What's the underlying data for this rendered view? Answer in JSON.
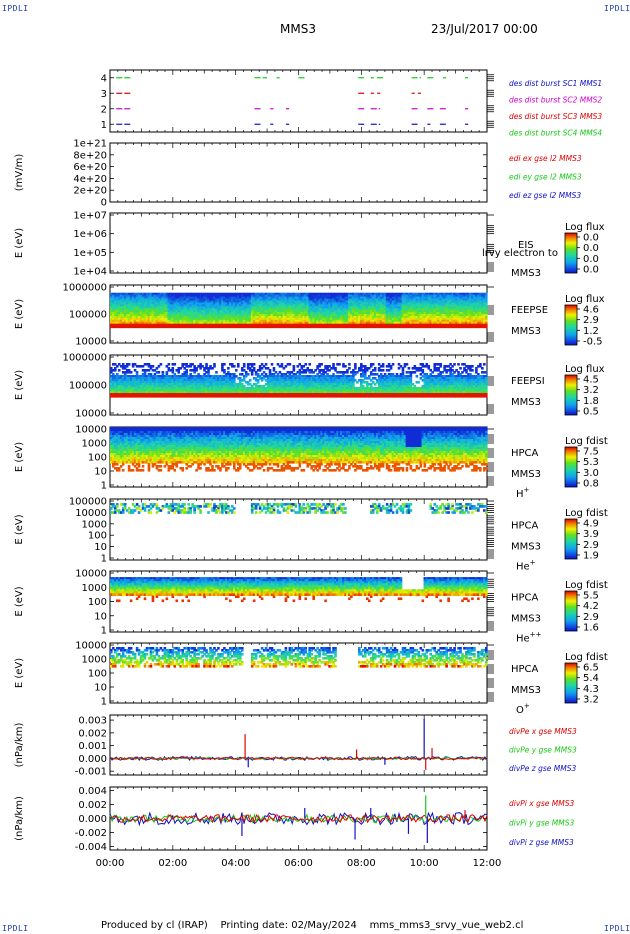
{
  "header": {
    "corner_label": "IPDLI",
    "spacecraft": "MMS3",
    "date": "23/Jul/2017 00:00"
  },
  "footer": {
    "producer": "Produced by cl (IRAP)",
    "printing_date": "Printing date: 02/May/2024",
    "script": "mms_mms3_srvy_vue_web2.cl"
  },
  "colors": {
    "red": "#e00000",
    "green": "#18c818",
    "blue": "#1010c8",
    "magenta": "#d000d0",
    "navy": "#1a3bb0"
  },
  "chart_data": [
    {
      "type": "timeline",
      "id": "burst",
      "y_ticks": [
        "1",
        "2",
        "3",
        "4"
      ],
      "ylim": [
        0.5,
        4.5
      ],
      "legend": [
        {
          "text": "des dist burst SC1 MMS1",
          "color": "#1010c8"
        },
        {
          "text": "des dist burst SC2 MMS2",
          "color": "#d000d0"
        },
        {
          "text": "des dist burst SC3 MMS3",
          "color": "#e00000"
        },
        {
          "text": "des dist burst SC4 MMS4",
          "color": "#18c818"
        }
      ],
      "series": [
        {
          "level": 1,
          "color": "#1010c8",
          "intervals": [
            [
              0.2,
              0.7
            ],
            [
              4.6,
              4.8
            ],
            [
              5.1,
              5.2
            ],
            [
              5.6,
              5.7
            ],
            [
              7.9,
              8.1
            ],
            [
              8.3,
              8.6
            ],
            [
              9.6,
              9.8
            ],
            [
              10.1,
              10.2
            ],
            [
              10.5,
              10.7
            ],
            [
              11.3,
              11.4
            ]
          ]
        },
        {
          "level": 2,
          "color": "#d000d0",
          "intervals": [
            [
              0.2,
              0.7
            ],
            [
              4.6,
              4.8
            ],
            [
              5.1,
              5.2
            ],
            [
              5.6,
              5.7
            ],
            [
              7.9,
              8.1
            ],
            [
              8.3,
              8.6
            ],
            [
              9.6,
              9.8
            ],
            [
              10.1,
              10.3
            ],
            [
              10.5,
              10.7
            ],
            [
              11.3,
              11.4
            ]
          ]
        },
        {
          "level": 3,
          "color": "#e00000",
          "intervals": [
            [
              0.2,
              0.7
            ],
            [
              7.9,
              8.1
            ],
            [
              8.3,
              8.4
            ],
            [
              8.5,
              8.6
            ],
            [
              9.6,
              9.7
            ],
            [
              9.8,
              9.9
            ]
          ]
        },
        {
          "level": 4,
          "color": "#18c818",
          "intervals": [
            [
              0.2,
              0.7
            ],
            [
              4.6,
              5.0
            ],
            [
              5.3,
              5.4
            ],
            [
              6.0,
              6.2
            ],
            [
              7.9,
              8.1
            ],
            [
              8.3,
              8.4
            ],
            [
              8.5,
              8.7
            ],
            [
              9.6,
              9.9
            ],
            [
              10.1,
              10.3
            ],
            [
              10.6,
              10.7
            ],
            [
              11.3,
              11.4
            ]
          ]
        }
      ]
    },
    {
      "type": "line",
      "id": "edi",
      "ylabel": "(mV/m)",
      "y_ticks": [
        "0",
        "2e+20",
        "4e+20",
        "6e+20",
        "8e+20",
        "1e+21"
      ],
      "ylim": [
        0,
        1e+21
      ],
      "legend": [
        {
          "text": "edi ex gse l2 MMS3",
          "color": "#e00000"
        },
        {
          "text": "edi ey gse l2 MMS3",
          "color": "#18c818"
        },
        {
          "text": "edi ez gse l2 MMS3",
          "color": "#1010c8"
        }
      ],
      "value_all_times": 0
    },
    {
      "type": "heatmap",
      "id": "eis",
      "ylabel": "E (eV)",
      "y_ticks": [
        "1e+04",
        "1e+05",
        "1e+06",
        "1e+07"
      ],
      "scale": "log",
      "empty": true,
      "label_lines": [
        "EIS",
        "MMS3"
      ],
      "overlay_text": "lrvy electron to",
      "colorbar": {
        "title": "Log flux",
        "ticks": [
          "0.0",
          "0.0",
          "0.0",
          "0.0"
        ]
      }
    },
    {
      "type": "heatmap",
      "id": "feeps_e",
      "ylabel": "E (eV)",
      "y_ticks": [
        "10000",
        "100000",
        "1000000"
      ],
      "scale": "log",
      "label_lines": [
        "FEEPSE",
        "MMS3"
      ],
      "colorbar": {
        "title": "Log flux",
        "ticks": [
          "4.6",
          "2.9",
          "1.2",
          "-0.5"
        ]
      }
    },
    {
      "type": "heatmap",
      "id": "feeps_i",
      "ylabel": "E (eV)",
      "y_ticks": [
        "10000",
        "100000",
        "1000000"
      ],
      "scale": "log",
      "label_lines": [
        "FEEPSI",
        "MMS3"
      ],
      "colorbar": {
        "title": "Log flux",
        "ticks": [
          "4.5",
          "3.2",
          "1.8",
          "0.5"
        ]
      }
    },
    {
      "type": "heatmap",
      "id": "hpca_h",
      "ylabel": "E (eV)",
      "y_ticks": [
        "1",
        "10",
        "100",
        "1000",
        "10000"
      ],
      "scale": "log",
      "label_lines": [
        "HPCA",
        "MMS3"
      ],
      "species": "H",
      "species_charge": "+",
      "colorbar": {
        "title": "Log fdist",
        "ticks": [
          "7.5",
          "5.3",
          "3.0",
          "0.8"
        ]
      }
    },
    {
      "type": "heatmap",
      "id": "hpca_he1",
      "ylabel": "E (eV)",
      "y_ticks": [
        "1",
        "10",
        "100",
        "1000",
        "10000",
        "100000"
      ],
      "scale": "log",
      "label_lines": [
        "HPCA",
        "MMS3"
      ],
      "species": "He",
      "species_charge": "+",
      "colorbar": {
        "title": "Log fdist",
        "ticks": [
          "4.9",
          "3.9",
          "2.9",
          "1.9"
        ]
      }
    },
    {
      "type": "heatmap",
      "id": "hpca_he2",
      "ylabel": "E (eV)",
      "y_ticks": [
        "1",
        "10",
        "100",
        "1000",
        "10000"
      ],
      "scale": "log",
      "label_lines": [
        "HPCA",
        "MMS3"
      ],
      "species": "He",
      "species_charge": "++",
      "colorbar": {
        "title": "Log fdist",
        "ticks": [
          "5.5",
          "4.2",
          "2.9",
          "1.6"
        ]
      }
    },
    {
      "type": "heatmap",
      "id": "hpca_o",
      "ylabel": "E (eV)",
      "y_ticks": [
        "1",
        "10",
        "100",
        "1000",
        "10000"
      ],
      "scale": "log",
      "label_lines": [
        "HPCA",
        "MMS3"
      ],
      "species": "O",
      "species_charge": "+",
      "colorbar": {
        "title": "Log fdist",
        "ticks": [
          "6.5",
          "5.4",
          "4.3",
          "3.2"
        ]
      }
    },
    {
      "type": "line",
      "id": "divpe",
      "ylabel": "(nPa/km)",
      "y_ticks": [
        "-0.001",
        "0.000",
        "0.001",
        "0.002",
        "0.003"
      ],
      "ylim": [
        -0.0013,
        0.0034
      ],
      "legend": [
        {
          "text": "divPe x gse MMS3",
          "color": "#e00000"
        },
        {
          "text": "divPe y gse MMS3",
          "color": "#18c818"
        },
        {
          "text": "divPe z gse MMS3",
          "color": "#1010c8"
        }
      ],
      "spikes": [
        {
          "t": 4.3,
          "v": 0.0019,
          "color": "#e00000"
        },
        {
          "t": 4.4,
          "v": -0.0007,
          "color": "#1010c8"
        },
        {
          "t": 7.85,
          "v": 0.0007,
          "color": "#e00000"
        },
        {
          "t": 8.75,
          "v": -0.0005,
          "color": "#1010c8"
        },
        {
          "t": 10.0,
          "v": 0.0031,
          "color": "#1010c8"
        },
        {
          "t": 10.05,
          "v": -0.0009,
          "color": "#e00000"
        },
        {
          "t": 10.25,
          "v": 0.0008,
          "color": "#e00000"
        }
      ]
    },
    {
      "type": "line",
      "id": "divpi",
      "ylabel": "(nPa/km)",
      "y_ticks": [
        "-0.004",
        "-0.002",
        "0.000",
        "0.002",
        "0.004"
      ],
      "ylim": [
        -0.0045,
        0.0045
      ],
      "legend": [
        {
          "text": "divPi x gse MMS3",
          "color": "#e00000"
        },
        {
          "text": "divPi y gse MMS3",
          "color": "#18c818"
        },
        {
          "text": "divPi z gse MMS3",
          "color": "#1010c8"
        }
      ],
      "spikes": [
        {
          "t": 4.2,
          "v": -0.0025,
          "color": "#1010c8"
        },
        {
          "t": 6.2,
          "v": 0.0015,
          "color": "#1010c8"
        },
        {
          "t": 7.8,
          "v": -0.003,
          "color": "#1010c8"
        },
        {
          "t": 8.3,
          "v": 0.0015,
          "color": "#1010c8"
        },
        {
          "t": 9.5,
          "v": -0.0022,
          "color": "#1010c8"
        },
        {
          "t": 10.05,
          "v": 0.0033,
          "color": "#18c818"
        },
        {
          "t": 10.1,
          "v": -0.0035,
          "color": "#1010c8"
        },
        {
          "t": 11.3,
          "v": 0.0012,
          "color": "#e00000"
        }
      ]
    }
  ],
  "x_axis": {
    "range_hours": [
      0,
      12
    ],
    "tick_labels": [
      "00:00",
      "02:00",
      "04:00",
      "06:00",
      "08:00",
      "10:00",
      "12:00"
    ]
  }
}
